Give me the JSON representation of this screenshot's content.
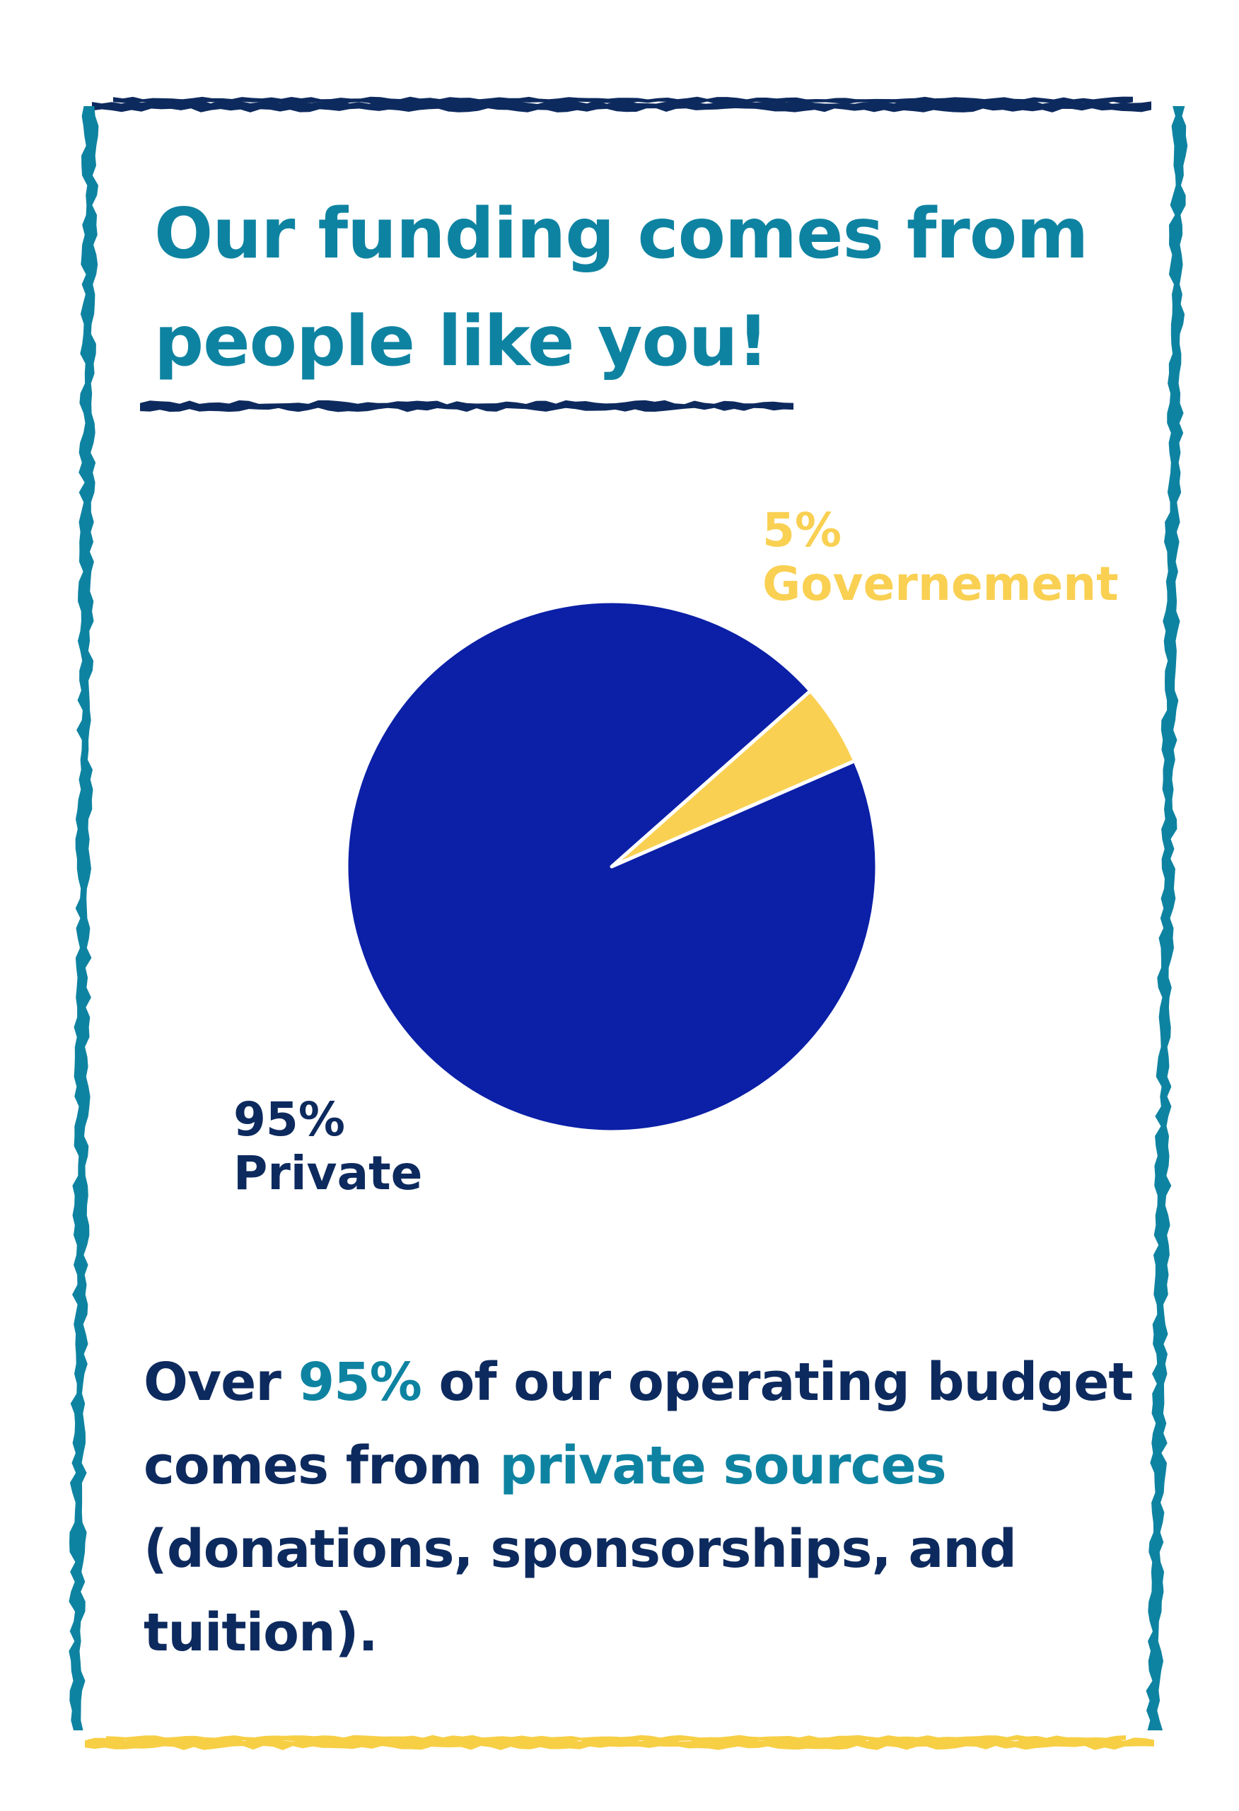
{
  "title": {
    "line1": "Our funding comes from",
    "line2": "people like you!"
  },
  "colors": {
    "title": "#0e83a1",
    "frame_side": "#0e83a1",
    "frame_top": "#0d2a5e",
    "frame_bottom": "#f7cf45",
    "private": "#0b20a6",
    "government": "#f9d052",
    "dark_text": "#0d2a5e",
    "highlight": "#0e83a1"
  },
  "chart_data": {
    "type": "pie",
    "slices": [
      {
        "label": "Governement",
        "value": 5,
        "percent_text": "5%",
        "color": "#f9d052"
      },
      {
        "label": "Private",
        "value": 95,
        "percent_text": "95%",
        "color": "#0b20a6"
      }
    ],
    "slice_border": "white"
  },
  "body": {
    "line1_a": "Over ",
    "line1_b": "95%",
    "line1_c": " of our operating budget",
    "line2_a": "comes from ",
    "line2_b": "private sources",
    "line3": "(donations, sponsorships, and",
    "line4": "tuition)."
  }
}
